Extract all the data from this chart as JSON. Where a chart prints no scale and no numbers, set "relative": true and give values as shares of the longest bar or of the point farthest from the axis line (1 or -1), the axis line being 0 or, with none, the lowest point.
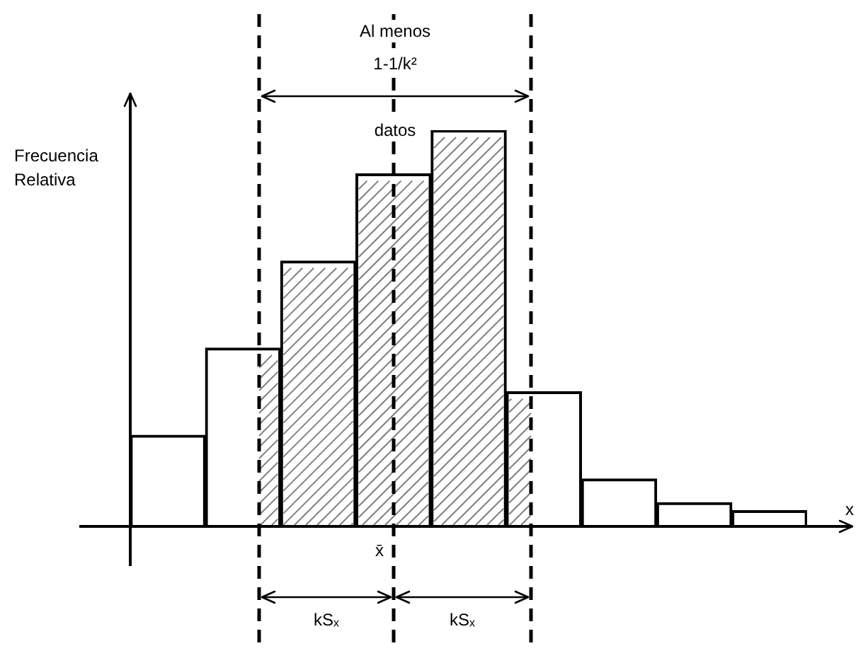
{
  "chart_data": {
    "type": "bar",
    "relative": true,
    "categories": [
      null,
      null,
      null,
      null,
      null,
      null,
      null,
      null,
      null
    ],
    "values": [
      0.23,
      0.45,
      0.67,
      0.89,
      1,
      0.34,
      0.12,
      0.06,
      0.04
    ],
    "color": "#ffffff",
    "ylabel": "Frecuencia Relativa",
    "xlabel": "x",
    "annotations": [
      "Al menos 1-1/k² datos",
      "x̄",
      "kSₓ",
      "kSₓ"
    ],
    "legend": false
  }
}
